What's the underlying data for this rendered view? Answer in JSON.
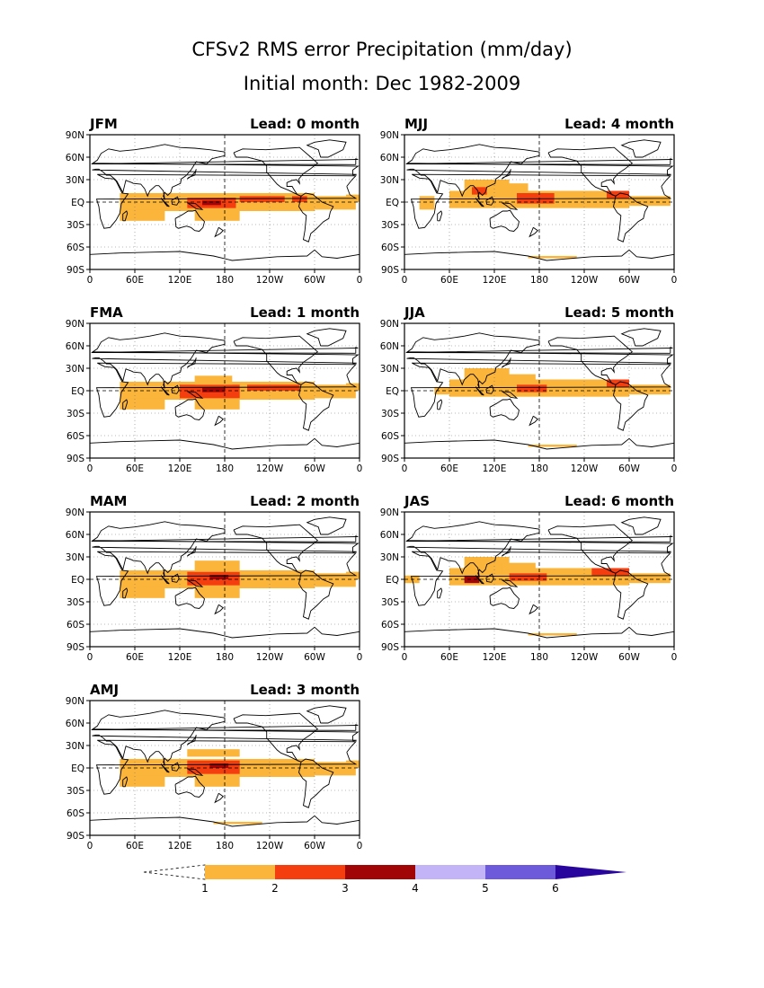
{
  "title": {
    "line1": "CFSv2 RMS error Precipitation (mm/day)",
    "line2": "Initial month: Dec 1982-2009"
  },
  "lon_ticks": [
    "0",
    "60E",
    "120E",
    "180",
    "120W",
    "60W",
    "0"
  ],
  "lat_ticks": [
    "90N",
    "60N",
    "30N",
    "EQ",
    "30S",
    "60S",
    "90S"
  ],
  "panels": [
    {
      "season": "JFM",
      "lead": "Lead: 0 month"
    },
    {
      "season": "MJJ",
      "lead": "Lead: 4 month"
    },
    {
      "season": "FMA",
      "lead": "Lead: 1 month"
    },
    {
      "season": "JJA",
      "lead": "Lead: 5 month"
    },
    {
      "season": "MAM",
      "lead": "Lead: 2 month"
    },
    {
      "season": "JAS",
      "lead": "Lead: 6 month"
    },
    {
      "season": "AMJ",
      "lead": "Lead: 3 month"
    }
  ],
  "colorbar": {
    "labels": [
      "1",
      "2",
      "3",
      "4",
      "5",
      "6"
    ],
    "colors": [
      "#fbb53b",
      "#f53e0f",
      "#a10505",
      "#c2b4f7",
      "#6c5adb",
      "#28059c"
    ],
    "units": "mm/day"
  },
  "colors": {
    "level1": "#fbb53b",
    "level2": "#f53e0f",
    "level3": "#a10505",
    "level4": "#c2b4f7"
  }
}
